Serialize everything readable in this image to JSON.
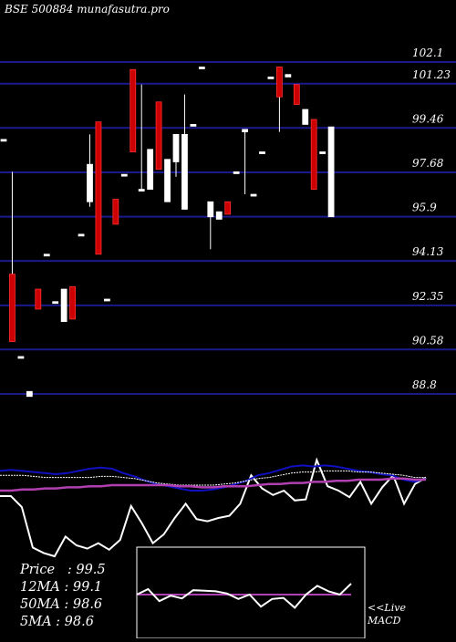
{
  "title": "BSE 500884  munafasutra.pro",
  "colors": {
    "background": "#000000",
    "gridline": "#1a1a8c",
    "up_candle": "#ffffff",
    "down_candle": "#cc0000",
    "price_line": "#ffffff",
    "ma_short": "#ffffff",
    "ma_mid": "#1010c0",
    "ma_long": "#b040b0",
    "panel_border": "#ffffff"
  },
  "stats": {
    "price": "Price   : 99.5",
    "ma12": "12MA : 99.1",
    "ma50": "50MA : 98.6",
    "ma5": "5MA : 98.6"
  },
  "macd_label": {
    "line1": "<<Live",
    "line2": "MACD"
  },
  "chart_data": {
    "type": "candlestick",
    "title": "BSE 500884  munafasutra.pro",
    "y_ticks": [
      102.1,
      101.23,
      99.46,
      97.68,
      95.9,
      94.13,
      92.35,
      90.58,
      88.8
    ],
    "y_tick_labels": [
      "102.1",
      "101.23",
      "99.46",
      "97.68",
      "95.9",
      "94.13",
      "92.35",
      "90.58",
      "88.8"
    ],
    "ylim": [
      86.8,
      104.0
    ],
    "grid": true,
    "candles": [
      {
        "open": 99.0,
        "close": 99.0,
        "high": 99.0,
        "low": 99.0
      },
      {
        "open": 93.6,
        "close": 90.9,
        "high": 97.7,
        "low": 90.9
      },
      {
        "open": 90.3,
        "close": 90.3,
        "high": 90.3,
        "low": 90.3
      },
      {
        "open": 88.7,
        "close": 88.9,
        "high": 88.9,
        "low": 88.7
      },
      {
        "open": 93.0,
        "close": 92.2,
        "high": 93.0,
        "low": 92.2
      },
      {
        "open": 94.4,
        "close": 94.4,
        "high": 94.4,
        "low": 94.4
      },
      {
        "open": 92.5,
        "close": 92.5,
        "high": 92.5,
        "low": 92.5
      },
      {
        "open": 91.7,
        "close": 93.0,
        "high": 93.0,
        "low": 91.7
      },
      {
        "open": 93.1,
        "close": 91.8,
        "high": 93.1,
        "low": 91.8
      },
      {
        "open": 95.2,
        "close": 95.2,
        "high": 95.2,
        "low": 95.2
      },
      {
        "open": 96.5,
        "close": 98.0,
        "high": 99.2,
        "low": 96.3
      },
      {
        "open": 99.7,
        "close": 94.4,
        "high": 99.7,
        "low": 94.4
      },
      {
        "open": 92.6,
        "close": 92.6,
        "high": 92.6,
        "low": 92.6
      },
      {
        "open": 96.6,
        "close": 95.6,
        "high": 96.6,
        "low": 95.6
      },
      {
        "open": 97.6,
        "close": 97.6,
        "high": 97.6,
        "low": 97.6
      },
      {
        "open": 101.8,
        "close": 98.5,
        "high": 101.8,
        "low": 98.5
      },
      {
        "open": 97.0,
        "close": 97.0,
        "high": 101.2,
        "low": 97.0
      },
      {
        "open": 97.0,
        "close": 98.6,
        "high": 98.6,
        "low": 97.0
      },
      {
        "open": 100.5,
        "close": 97.8,
        "high": 100.5,
        "low": 97.8
      },
      {
        "open": 96.5,
        "close": 98.2,
        "high": 98.2,
        "low": 96.5
      },
      {
        "open": 98.1,
        "close": 99.2,
        "high": 99.2,
        "low": 97.5
      },
      {
        "open": 96.2,
        "close": 99.2,
        "high": 100.8,
        "low": 96.2
      },
      {
        "open": 99.6,
        "close": 99.6,
        "high": 99.6,
        "low": 99.6
      },
      {
        "open": 101.9,
        "close": 101.9,
        "high": 101.9,
        "low": 101.9
      },
      {
        "open": 95.9,
        "close": 96.5,
        "high": 96.5,
        "low": 94.6
      },
      {
        "open": 95.8,
        "close": 96.1,
        "high": 96.1,
        "low": 95.8
      },
      {
        "open": 96.5,
        "close": 96.0,
        "high": 96.5,
        "low": 96.0
      },
      {
        "open": 97.7,
        "close": 97.7,
        "high": 97.7,
        "low": 97.7
      },
      {
        "open": 99.3,
        "close": 99.4,
        "high": 99.4,
        "low": 96.8
      },
      {
        "open": 96.8,
        "close": 96.8,
        "high": 96.8,
        "low": 96.8
      },
      {
        "open": 98.5,
        "close": 98.5,
        "high": 98.5,
        "low": 98.5
      },
      {
        "open": 101.5,
        "close": 101.5,
        "high": 101.5,
        "low": 101.5
      },
      {
        "open": 101.9,
        "close": 100.7,
        "high": 101.9,
        "low": 99.3
      },
      {
        "open": 101.5,
        "close": 101.6,
        "high": 101.6,
        "low": 101.5
      },
      {
        "open": 101.2,
        "close": 100.4,
        "high": 101.2,
        "low": 100.4
      },
      {
        "open": 99.6,
        "close": 100.2,
        "high": 100.2,
        "low": 99.6
      },
      {
        "open": 99.8,
        "close": 97.0,
        "high": 99.8,
        "low": 97.0
      },
      {
        "open": 98.5,
        "close": 98.5,
        "high": 98.5,
        "low": 98.5
      },
      {
        "open": 95.9,
        "close": 99.5,
        "high": 99.5,
        "low": 95.9
      }
    ],
    "indicator_series": [
      {
        "values": [
          0.55,
          0.55,
          0.45,
          0.08,
          0.03,
          0.0,
          0.18,
          0.1,
          0.07,
          0.12,
          0.06,
          0.15,
          0.46,
          0.3,
          0.12,
          0.2,
          0.35,
          0.48,
          0.34,
          0.32,
          0.35,
          0.37,
          0.48,
          0.74,
          0.62,
          0.56,
          0.6,
          0.51,
          0.52,
          0.88,
          0.64,
          0.6,
          0.54,
          0.68,
          0.48,
          0.63,
          0.74,
          0.48,
          0.66,
          0.72
        ]
      },
      {
        "values": [
          0.78,
          0.79,
          0.78,
          0.77,
          0.76,
          0.75,
          0.76,
          0.78,
          0.8,
          0.81,
          0.8,
          0.76,
          0.73,
          0.69,
          0.66,
          0.64,
          0.62,
          0.6,
          0.6,
          0.61,
          0.63,
          0.66,
          0.69,
          0.74,
          0.76,
          0.79,
          0.82,
          0.83,
          0.82,
          0.83,
          0.82,
          0.8,
          0.78,
          0.77,
          0.75,
          0.74,
          0.7,
          0.68,
          0.71
        ]
      },
      {
        "values": [
          0.74,
          0.74,
          0.74,
          0.73,
          0.72,
          0.72,
          0.72,
          0.72,
          0.72,
          0.73,
          0.73,
          0.72,
          0.71,
          0.69,
          0.67,
          0.66,
          0.65,
          0.65,
          0.65,
          0.65,
          0.66,
          0.67,
          0.69,
          0.71,
          0.72,
          0.74,
          0.76,
          0.77,
          0.77,
          0.78,
          0.78,
          0.78,
          0.77,
          0.77,
          0.76,
          0.75,
          0.74,
          0.72,
          0.72
        ]
      },
      {
        "values": [
          0.6,
          0.6,
          0.61,
          0.61,
          0.62,
          0.62,
          0.63,
          0.63,
          0.64,
          0.64,
          0.65,
          0.65,
          0.65,
          0.65,
          0.65,
          0.65,
          0.64,
          0.64,
          0.63,
          0.63,
          0.64,
          0.64,
          0.64,
          0.65,
          0.66,
          0.66,
          0.67,
          0.67,
          0.68,
          0.68,
          0.69,
          0.69,
          0.7,
          0.7,
          0.7,
          0.71,
          0.71,
          0.7,
          0.7
        ]
      }
    ],
    "macd_series": [
      {
        "values": [
          0.5,
          0.5,
          0.5,
          0.5,
          0.5,
          0.5,
          0.5,
          0.5,
          0.5,
          0.5,
          0.5,
          0.5,
          0.5,
          0.5,
          0.5,
          0.5,
          0.5,
          0.5,
          0.5,
          0.5
        ]
      },
      {
        "values": [
          0.5,
          0.6,
          0.38,
          0.48,
          0.43,
          0.58,
          0.57,
          0.56,
          0.52,
          0.42,
          0.5,
          0.28,
          0.42,
          0.44,
          0.26,
          0.5,
          0.66,
          0.56,
          0.5,
          0.7
        ]
      }
    ]
  }
}
